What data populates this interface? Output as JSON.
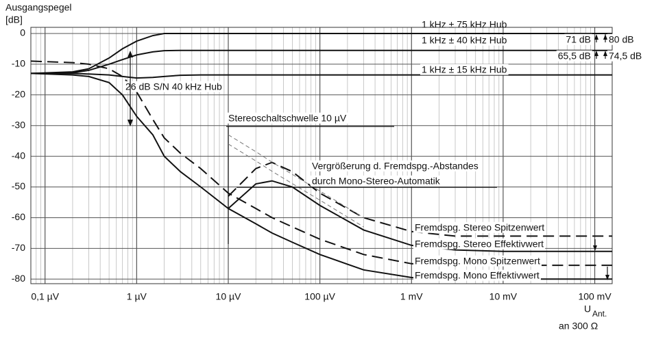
{
  "chart_data": {
    "type": "line",
    "y_label": "Ausgangspegel",
    "y_unit": "[dB]",
    "x_label": "U",
    "x_label_sub": "Ant.",
    "x_label_note": "an 300 Ω",
    "log_x": true,
    "grid": true,
    "minor_grid": true,
    "xlim": [
      0.07,
      155000
    ],
    "ylim": [
      -81.5,
      2
    ],
    "xticks": [
      {
        "value": 0.1,
        "label": "0,1 µV"
      },
      {
        "value": 1,
        "label": "1 µV"
      },
      {
        "value": 10,
        "label": "10 µV"
      },
      {
        "value": 100,
        "label": "100 µV"
      },
      {
        "value": 1000,
        "label": "1 mV"
      },
      {
        "value": 10000,
        "label": "10 mV"
      },
      {
        "value": 100000,
        "label": "100 mV"
      }
    ],
    "yticks": [
      0,
      -10,
      -20,
      -30,
      -40,
      -50,
      -60,
      -70,
      -80
    ],
    "stereo_threshold": 10,
    "x": [
      0.07,
      0.2,
      0.3,
      0.5,
      0.7,
      1,
      1.5,
      2,
      3,
      5,
      10,
      20,
      30,
      50,
      100,
      300,
      1000,
      3000,
      10000,
      155000
    ],
    "series": [
      {
        "name": "1 kHz ± 75 kHz Hub",
        "color": "#111",
        "dashed": false,
        "values": [
          -13,
          -12.5,
          -11.5,
          -8,
          -5,
          -2.5,
          -0.7,
          0,
          0,
          0,
          0,
          0,
          0,
          0,
          0,
          0,
          0,
          0,
          0,
          0
        ]
      },
      {
        "name": "1 kHz ± 40 kHz Hub",
        "color": "#111",
        "dashed": false,
        "values": [
          -13,
          -12.8,
          -12,
          -10,
          -8.5,
          -7,
          -6,
          -5.6,
          -5.5,
          -5.5,
          -5.5,
          -5.5,
          -5.5,
          -5.5,
          -5.5,
          -5.5,
          -5.5,
          -5.5,
          -5.5,
          -5.5
        ]
      },
      {
        "name": "1 kHz ± 15 kHz Hub",
        "color": "#111",
        "dashed": false,
        "values": [
          -13,
          -13,
          -13.2,
          -13.5,
          -14,
          -14.5,
          -14.3,
          -14,
          -13.6,
          -13.5,
          -13.5,
          -13.5,
          -13.5,
          -13.5,
          -13.5,
          -13.5,
          -13.5,
          -13.5,
          -13.5,
          -13.5
        ]
      },
      {
        "name": "Fremdspg. Stereo Spitzenwert",
        "color": "#111",
        "dashed": true,
        "values": [
          null,
          null,
          null,
          null,
          null,
          null,
          null,
          null,
          null,
          null,
          -53,
          -44,
          -42,
          -45,
          -52,
          -60,
          -64.5,
          -66,
          -66,
          -66
        ]
      },
      {
        "name": "Fremdspg. Stereo Effektivwert",
        "color": "#111",
        "dashed": false,
        "values": [
          null,
          null,
          null,
          null,
          null,
          null,
          null,
          null,
          null,
          null,
          -57,
          -49,
          -48,
          -50,
          -56,
          -64,
          -69,
          -70.5,
          -71,
          -71
        ]
      },
      {
        "name": "Fremdspg. Mono Spitzenwert",
        "color": "#111",
        "dashed": true,
        "values": [
          -9,
          -9.5,
          -10,
          -11.5,
          -14,
          -19,
          -28,
          -34,
          -39,
          -44,
          -52,
          -57,
          -60,
          -63,
          -67,
          -72,
          -75,
          -75.5,
          -75.5,
          -75.5
        ]
      },
      {
        "name": "Fremdspg. Mono Effektivwert",
        "color": "#111",
        "dashed": false,
        "values": [
          -13,
          -13.5,
          -14,
          -16,
          -20,
          -27,
          -33,
          -40,
          -45,
          -50,
          -57,
          -62,
          -65,
          -68,
          -72,
          -77,
          -79.5,
          -80,
          -80,
          -80
        ]
      },
      {
        "color": "#777",
        "dashed": true,
        "thin": true,
        "values": [
          null,
          null,
          null,
          null,
          null,
          null,
          null,
          null,
          null,
          null,
          -33,
          -38.5,
          -41.9,
          -45.9,
          -51.3,
          -60,
          null,
          null,
          null,
          null
        ]
      },
      {
        "color": "#777",
        "dashed": true,
        "thin": true,
        "values": [
          null,
          null,
          null,
          null,
          null,
          null,
          null,
          null,
          null,
          null,
          -36,
          -41.5,
          -44.9,
          -48.9,
          -54.3,
          -63,
          null,
          null,
          null,
          null
        ]
      }
    ],
    "annotations": [
      "26 dB S/N  40 kHz Hub",
      "Stereoschaltschwelle 10 µV",
      "Vergrößerung d. Fremdspg.-Abstandes",
      "durch Mono-Stereo-Automatik",
      "71 dB",
      "80 dB",
      "65,5 dB",
      "74,5 dB"
    ]
  }
}
